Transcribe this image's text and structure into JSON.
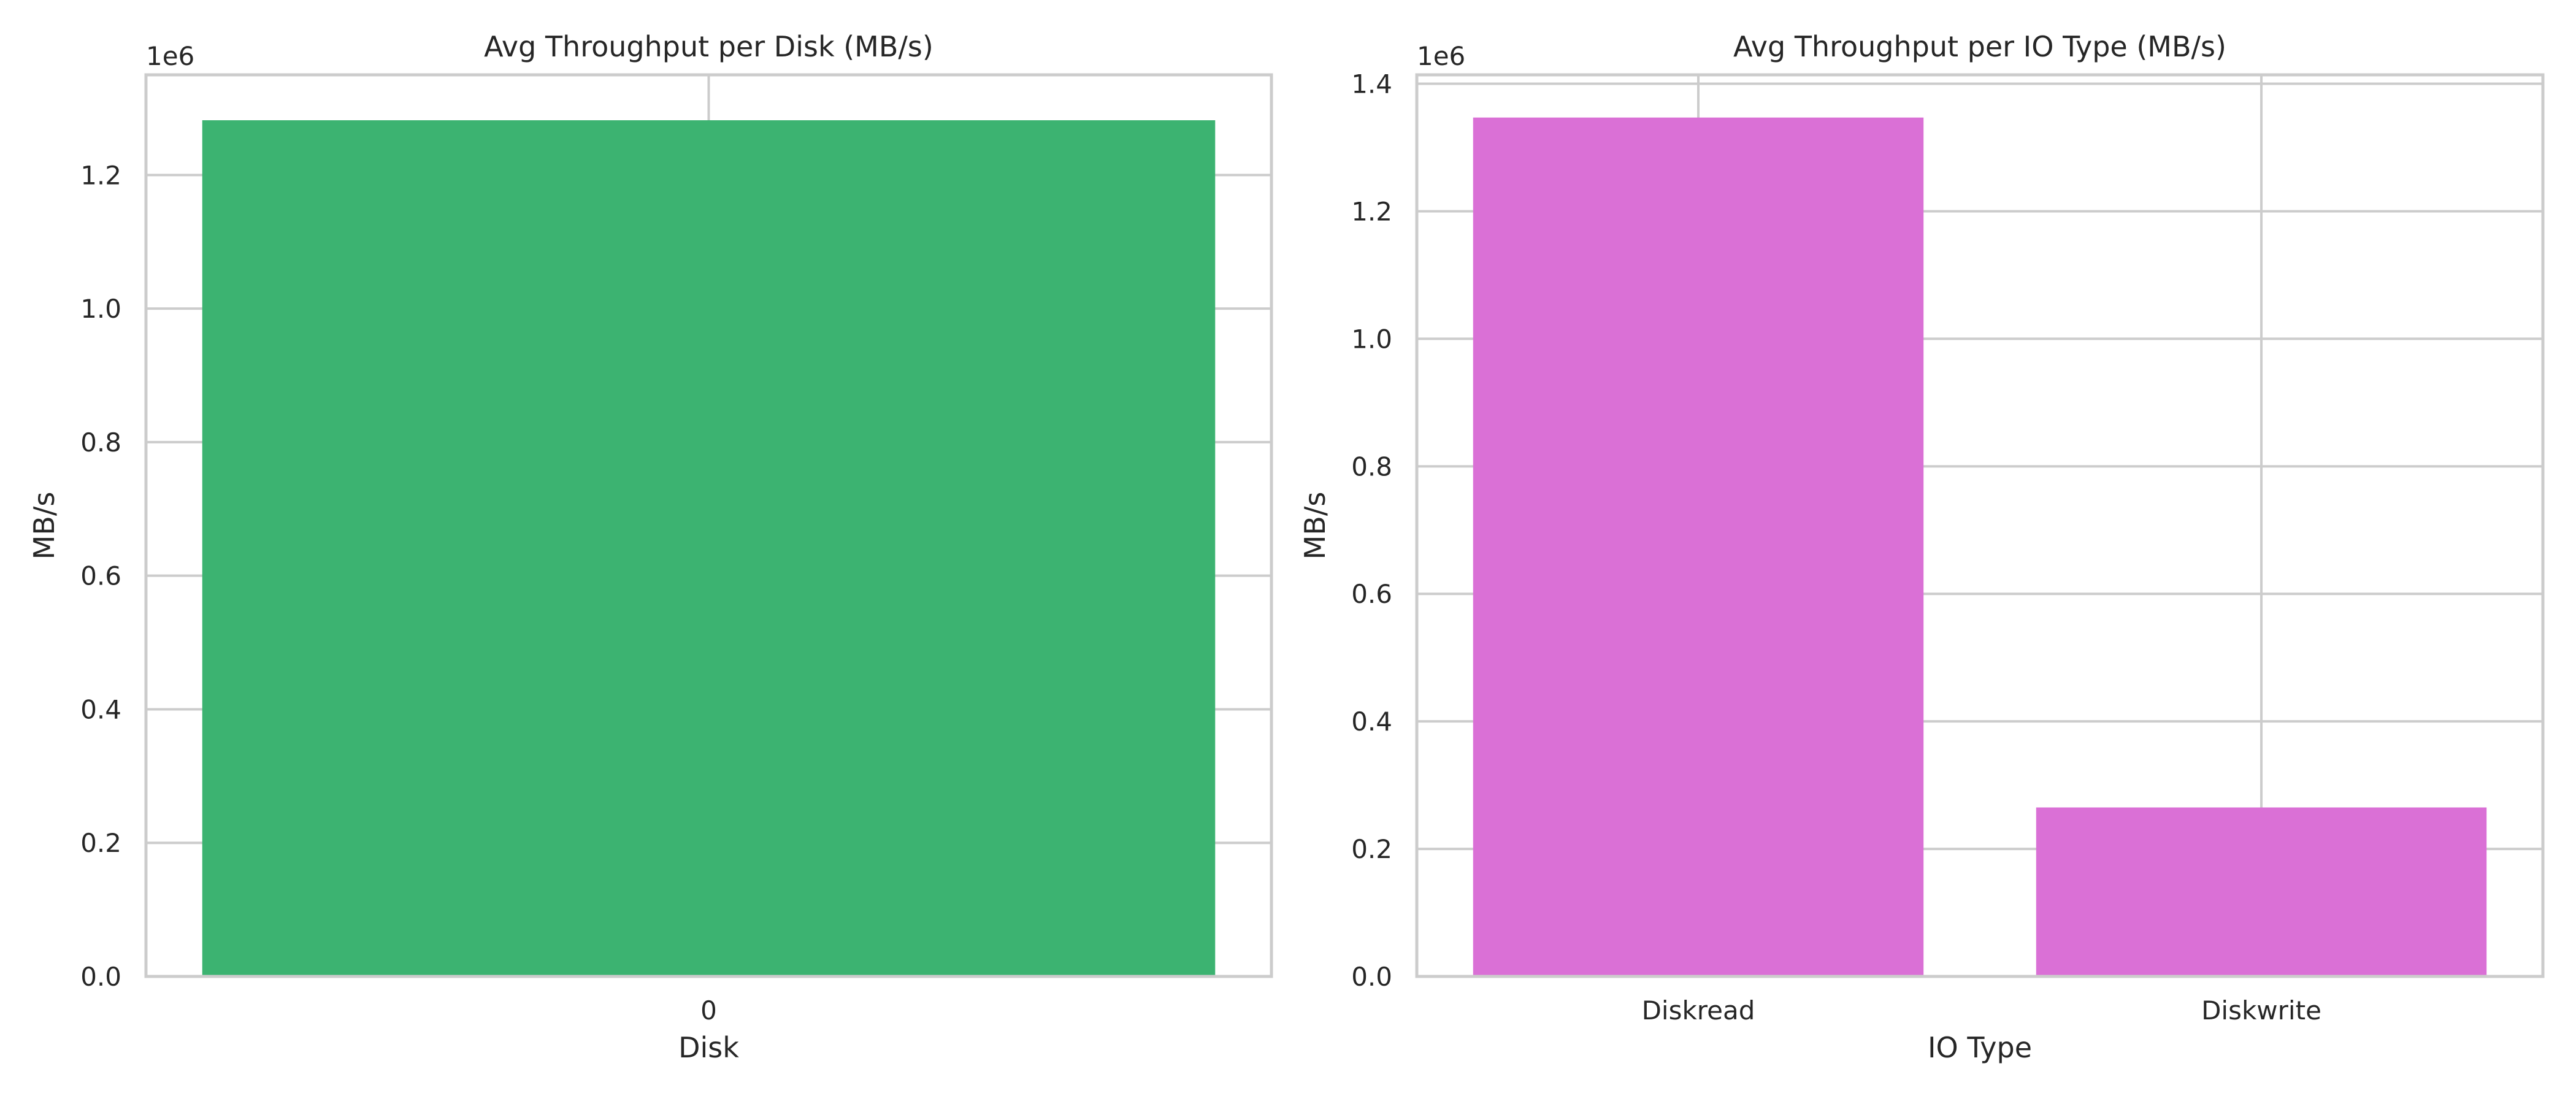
{
  "chart_data": [
    {
      "type": "bar",
      "title": "Avg Throughput per Disk (MB/s)",
      "xlabel": "Disk",
      "ylabel": "MB/s",
      "offset_label": "1e6",
      "categories": [
        "0"
      ],
      "values": [
        1282000
      ],
      "ylim": [
        0,
        1350000
      ],
      "yticks": [
        0,
        200000,
        400000,
        600000,
        800000,
        1000000,
        1200000
      ],
      "ytick_labels": [
        "0.0",
        "0.2",
        "0.4",
        "0.6",
        "0.8",
        "1.0",
        "1.2"
      ],
      "color": "#3cb371",
      "grid": true
    },
    {
      "type": "bar",
      "title": "Avg Throughput per IO Type (MB/s)",
      "xlabel": "IO Type",
      "ylabel": "MB/s",
      "offset_label": "1e6",
      "categories": [
        "Diskread",
        "Diskwrite"
      ],
      "values": [
        1347000,
        265000
      ],
      "ylim": [
        0,
        1414000
      ],
      "yticks": [
        0,
        200000,
        400000,
        600000,
        800000,
        1000000,
        1200000,
        1400000
      ],
      "ytick_labels": [
        "0.0",
        "0.2",
        "0.4",
        "0.6",
        "0.8",
        "1.0",
        "1.2",
        "1.4"
      ],
      "color": "#da70d6",
      "grid": true
    }
  ]
}
